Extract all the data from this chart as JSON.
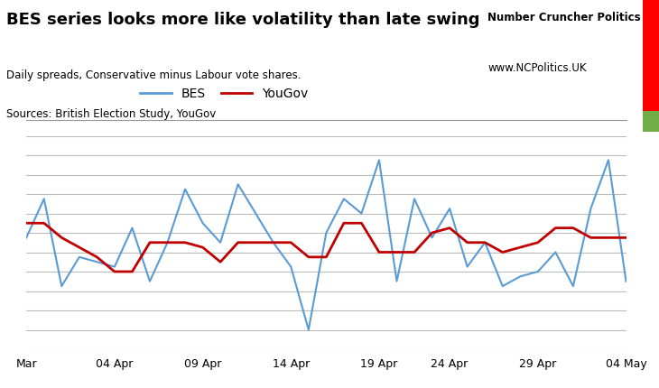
{
  "title": "BES series looks more like volatility than late swing",
  "subtitle1": "Daily spreads, Conservative minus Labour vote shares.",
  "subtitle2": "Sources: British Election Study, YouGov",
  "branding1": "Number Cruncher Politics",
  "branding2": "www.NCPolitics.UK",
  "bes_color": "#5B9BD5",
  "yougov_color": "#C00000",
  "background_color": "#FFFFFF",
  "grid_color": "#BBBBBB",
  "x_labels": [
    "Mar",
    "04 Apr",
    "09 Apr",
    "14 Apr",
    "19 Apr",
    "24 Apr",
    "29 Apr",
    "04 May"
  ],
  "bes_values": [
    3.5,
    7.5,
    -1.5,
    1.5,
    1.0,
    0.5,
    4.5,
    -1.0,
    3.0,
    8.5,
    5.0,
    3.0,
    9.0,
    6.0,
    3.0,
    0.5,
    -6.0,
    4.0,
    7.5,
    6.0,
    11.5,
    -1.0,
    7.5,
    3.5,
    6.5,
    0.5,
    3.0,
    -1.5,
    -0.5,
    0.0,
    2.0,
    -1.5,
    6.5,
    11.5,
    -1.0
  ],
  "yougov_values": [
    5.0,
    5.0,
    3.5,
    2.5,
    1.5,
    0.0,
    0.0,
    3.0,
    3.0,
    3.0,
    2.5,
    1.0,
    3.0,
    3.0,
    3.0,
    3.0,
    1.5,
    1.5,
    5.0,
    5.0,
    2.0,
    2.0,
    2.0,
    4.0,
    4.5,
    3.0,
    3.0,
    2.0,
    2.5,
    3.0,
    4.5,
    4.5,
    3.5,
    3.5,
    3.5
  ],
  "ylim_min": -8,
  "ylim_max": 14,
  "n_points": 35,
  "tick_positions": [
    0,
    5,
    10,
    15,
    20,
    24,
    29,
    34
  ]
}
